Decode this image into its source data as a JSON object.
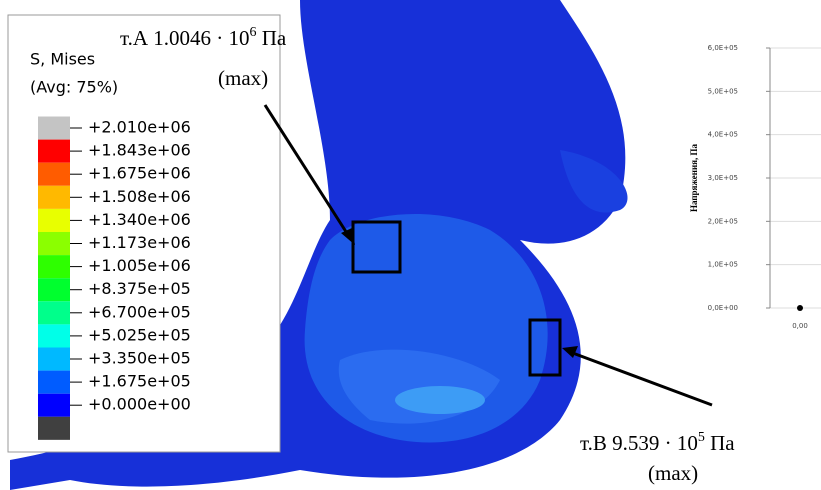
{
  "legend": {
    "title": "S, Mises",
    "subtitle": "(Avg: 75%)",
    "entries": [
      {
        "label": "+2.010e+06",
        "color": "#c4c4c4"
      },
      {
        "label": "+1.843e+06",
        "color": "#ff0000"
      },
      {
        "label": "+1.675e+06",
        "color": "#ff5c00"
      },
      {
        "label": "+1.508e+06",
        "color": "#ffb900"
      },
      {
        "label": "+1.340e+06",
        "color": "#e8ff00"
      },
      {
        "label": "+1.173e+06",
        "color": "#8bff00"
      },
      {
        "label": "+1.005e+06",
        "color": "#2eff00"
      },
      {
        "label": "+8.375e+05",
        "color": "#00ff2e"
      },
      {
        "label": "+6.700e+05",
        "color": "#00ff8b"
      },
      {
        "label": "+5.025e+05",
        "color": "#00ffe8"
      },
      {
        "label": "+3.350e+05",
        "color": "#00b9ff"
      },
      {
        "label": "+1.675e+05",
        "color": "#005cff"
      },
      {
        "label": "+0.000e+00",
        "color": "#0000ff"
      }
    ]
  },
  "annotations": [
    {
      "prefix": "т.А 1.0046 · 10",
      "exponent": "6",
      "unit": " Па",
      "note": "(max)"
    },
    {
      "prefix": "т.В 9.539 · 10",
      "exponent": "5",
      "unit": " Па",
      "note": "(max)"
    }
  ],
  "chart_data": {
    "type": "line",
    "ylabel": "Напряжения, Па",
    "x": [
      0
    ],
    "values": [
      0
    ],
    "color": "#000000",
    "xlim": [
      0,
      1
    ],
    "xticks": [
      {
        "value": 0,
        "label": "0,00"
      }
    ],
    "ylim": [
      0,
      600000
    ],
    "yticks": [
      {
        "value": 0,
        "label": "0,0E+00"
      },
      {
        "value": 100000,
        "label": "1,0E+05"
      },
      {
        "value": 200000,
        "label": "2,0E+05"
      },
      {
        "value": 300000,
        "label": "3,0E+05"
      },
      {
        "value": 400000,
        "label": "4,0E+05"
      },
      {
        "value": 500000,
        "label": "5,0E+05"
      },
      {
        "value": 600000,
        "label": "6,0E+05"
      }
    ],
    "grid": true
  }
}
